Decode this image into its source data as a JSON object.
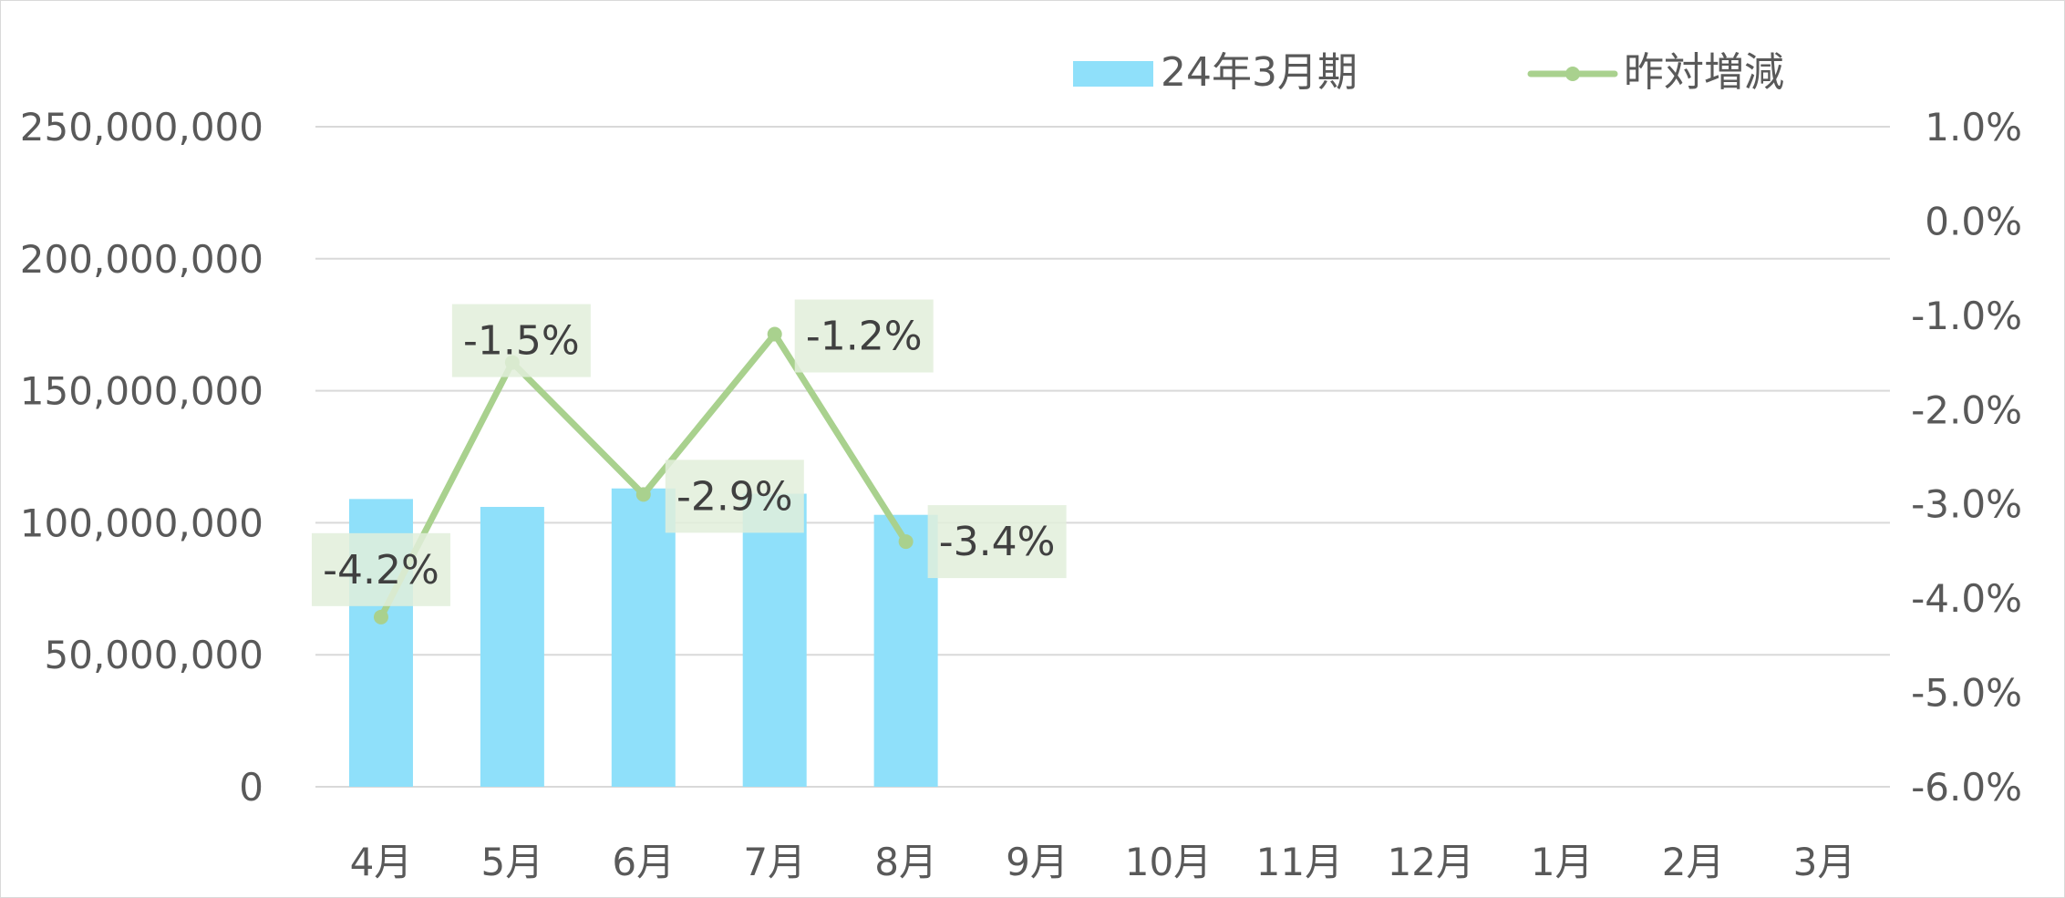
{
  "chart_data": {
    "type": "bar+line",
    "categories": [
      "4月",
      "5月",
      "6月",
      "7月",
      "8月",
      "9月",
      "10月",
      "11月",
      "12月",
      "1月",
      "2月",
      "3月"
    ],
    "series": [
      {
        "name": "24年3月期",
        "type": "bar",
        "axis": "left",
        "color": "#8fe0fa",
        "values": [
          109000000,
          106000000,
          113000000,
          111000000,
          103000000,
          null,
          null,
          null,
          null,
          null,
          null,
          null
        ]
      },
      {
        "name": "昨対増減",
        "type": "line",
        "axis": "right",
        "color": "#a9d18e",
        "values": [
          -0.042,
          -0.015,
          -0.029,
          -0.012,
          -0.034,
          null,
          null,
          null,
          null,
          null,
          null,
          null
        ],
        "labels": [
          "-4.2%",
          "-1.5%",
          "-2.9%",
          "-1.2%",
          "-3.4%"
        ]
      }
    ],
    "y_left": {
      "ylim": [
        0,
        250000000
      ],
      "ticks": [
        0,
        50000000,
        100000000,
        150000000,
        200000000,
        250000000
      ],
      "tick_labels": [
        "0",
        "50,000,000",
        "100,000,000",
        "150,000,000",
        "200,000,000",
        "250,000,000"
      ]
    },
    "y_right": {
      "ylim": [
        -0.06,
        0.01
      ],
      "ticks": [
        -0.06,
        -0.05,
        -0.04,
        -0.03,
        -0.02,
        -0.01,
        0.0,
        0.01
      ],
      "tick_labels": [
        "-6.0%",
        "-5.0%",
        "-4.0%",
        "-3.0%",
        "-2.0%",
        "-1.0%",
        "0.0%",
        "1.0%"
      ]
    },
    "grid": true,
    "legend_position": "top-right",
    "label_bg_color": "#e2efda",
    "grid_color": "#d9d9d9",
    "tick_color": "#595959"
  }
}
